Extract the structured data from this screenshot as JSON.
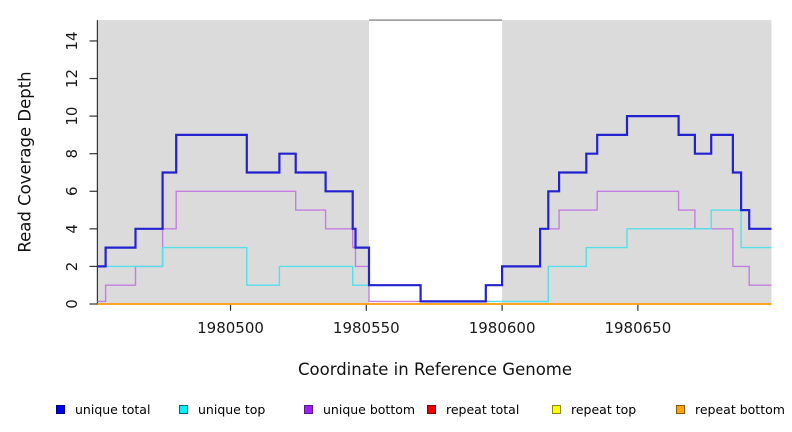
{
  "axes": {
    "x_title": "Coordinate in Reference Genome",
    "y_title": "Read Coverage Depth"
  },
  "legend": {
    "items": [
      {
        "label": "unique total",
        "fill": "#0000e6",
        "border": "#00008b"
      },
      {
        "label": "unique top",
        "fill": "#00f0ff",
        "border": "#00696e"
      },
      {
        "label": "unique bottom",
        "fill": "#a020f0",
        "border": "#551a8b"
      },
      {
        "label": "repeat total",
        "fill": "#ee0000",
        "border": "#8b0000"
      },
      {
        "label": "repeat top",
        "fill": "#ffff00",
        "border": "#8b8b00"
      },
      {
        "label": "repeat bottom",
        "fill": "#ffa500",
        "border": "#8b5a00"
      }
    ]
  },
  "chart_data": {
    "type": "line",
    "title": "",
    "xlabel": "Coordinate in Reference Genome",
    "ylabel": "Read Coverage Depth",
    "xlim": [
      1980451.2,
      1980699.2
    ],
    "ylim": [
      0,
      15.11
    ],
    "x_tick_values": [
      1980500,
      1980550,
      1980600,
      1980650
    ],
    "x_tick_labels": [
      "1980500",
      "1980550",
      "1980600",
      "1980650"
    ],
    "y_tick_values": [
      0,
      2,
      4,
      6,
      8,
      10,
      12,
      14
    ],
    "y_tick_labels": [
      "0",
      "2",
      "4",
      "6",
      "8",
      "10",
      "12",
      "14"
    ],
    "grid": false,
    "legend_position": "bottom",
    "shade_color": "#dbdbdb",
    "gap_border_color": "#8a8a8a",
    "axis_color": "#333333",
    "shaded_regions": [
      [
        1980451,
        1980551
      ],
      [
        1980600,
        1980700
      ]
    ],
    "series": [
      {
        "id": "unique-total",
        "name": "unique total",
        "group": "unique",
        "color": "#2222d0",
        "width": 2.2,
        "steps": [
          [
            1980451,
            2
          ],
          [
            1980454,
            3
          ],
          [
            1980465,
            4
          ],
          [
            1980475,
            7
          ],
          [
            1980480,
            9
          ],
          [
            1980506,
            7
          ],
          [
            1980518,
            8
          ],
          [
            1980524,
            7
          ],
          [
            1980535,
            6
          ],
          [
            1980545,
            4
          ],
          [
            1980546,
            3
          ],
          [
            1980551,
            1
          ],
          [
            1980570,
            0
          ],
          [
            1980594,
            1
          ],
          [
            1980600,
            2
          ],
          [
            1980614,
            4
          ],
          [
            1980617,
            6
          ],
          [
            1980621,
            7
          ],
          [
            1980631,
            8
          ],
          [
            1980635,
            9
          ],
          [
            1980646,
            10
          ],
          [
            1980665,
            9
          ],
          [
            1980671,
            8
          ],
          [
            1980677,
            9
          ],
          [
            1980685,
            7
          ],
          [
            1980688,
            5
          ],
          [
            1980691,
            4
          ]
        ]
      },
      {
        "id": "unique-top",
        "name": "unique top",
        "group": "unique",
        "color": "#55dfe9",
        "width": 1.4,
        "steps": [
          [
            1980451,
            2
          ],
          [
            1980475,
            3
          ],
          [
            1980506,
            1
          ],
          [
            1980518,
            2
          ],
          [
            1980545,
            1
          ],
          [
            1980570,
            0
          ],
          [
            1980617,
            2
          ],
          [
            1980631,
            3
          ],
          [
            1980646,
            4
          ],
          [
            1980677,
            5
          ],
          [
            1980688,
            3
          ]
        ]
      },
      {
        "id": "unique-bottom",
        "name": "unique bottom",
        "group": "unique",
        "color": "#c27fe0",
        "width": 1.4,
        "steps": [
          [
            1980451,
            0
          ],
          [
            1980454,
            1
          ],
          [
            1980465,
            2
          ],
          [
            1980475,
            4
          ],
          [
            1980480,
            6
          ],
          [
            1980524,
            5
          ],
          [
            1980535,
            4
          ],
          [
            1980545,
            3
          ],
          [
            1980546,
            2
          ],
          [
            1980551,
            0
          ],
          [
            1980594,
            1
          ],
          [
            1980600,
            2
          ],
          [
            1980614,
            4
          ],
          [
            1980621,
            5
          ],
          [
            1980635,
            6
          ],
          [
            1980665,
            5
          ],
          [
            1980671,
            4
          ],
          [
            1980685,
            2
          ],
          [
            1980691,
            1
          ]
        ]
      },
      {
        "id": "repeat-total",
        "name": "repeat total",
        "group": "repeat",
        "color": "#dd2222",
        "width": 1.4,
        "steps": [
          [
            1980451,
            0
          ]
        ]
      },
      {
        "id": "repeat-top",
        "name": "repeat top",
        "group": "repeat",
        "color": "#ffee22",
        "width": 1.4,
        "steps": [
          [
            1980451,
            0
          ]
        ]
      },
      {
        "id": "repeat-bottom",
        "name": "repeat bottom",
        "group": "repeat",
        "color": "#ff9f1d",
        "width": 1.7,
        "steps": [
          [
            1980451,
            0
          ]
        ]
      }
    ]
  }
}
